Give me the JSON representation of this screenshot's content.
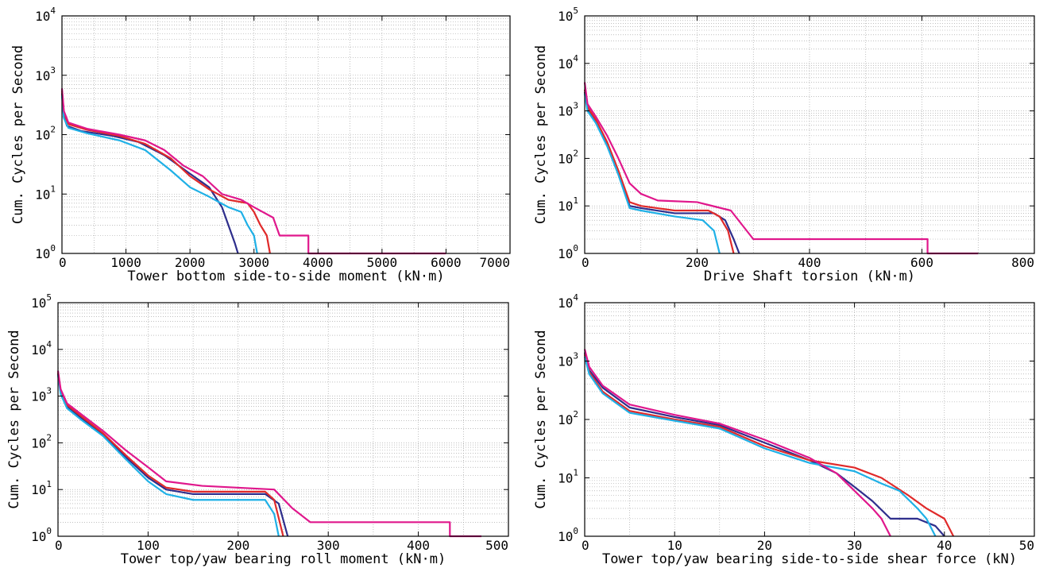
{
  "chart_data": [
    {
      "type": "line",
      "yscale": "log",
      "ylim": [
        1,
        10000
      ],
      "y_decades": [
        0,
        1,
        2,
        3,
        4
      ],
      "xlim": [
        0,
        7000
      ],
      "xticks": [
        0,
        1000,
        2000,
        3000,
        4000,
        5000,
        6000,
        7000
      ],
      "xlabel": "Tower bottom side-to-side moment (kN·m)",
      "ylabel": "Cum. Cycles per Second",
      "grid": true,
      "series": [
        {
          "color": "#2e2e8c",
          "points": [
            [
              0,
              500
            ],
            [
              30,
              200
            ],
            [
              80,
              140
            ],
            [
              300,
              115
            ],
            [
              800,
              95
            ],
            [
              1200,
              75
            ],
            [
              1600,
              45
            ],
            [
              2000,
              22
            ],
            [
              2300,
              13
            ],
            [
              2500,
              6
            ],
            [
              2600,
              3
            ],
            [
              2700,
              1.5
            ],
            [
              2750,
              1
            ]
          ]
        },
        {
          "color": "#e02a2a",
          "points": [
            [
              0,
              550
            ],
            [
              30,
              230
            ],
            [
              100,
              150
            ],
            [
              400,
              120
            ],
            [
              900,
              95
            ],
            [
              1300,
              70
            ],
            [
              1700,
              40
            ],
            [
              2000,
              20
            ],
            [
              2300,
              12
            ],
            [
              2600,
              8
            ],
            [
              2900,
              7
            ],
            [
              3000,
              5
            ],
            [
              3100,
              3
            ],
            [
              3200,
              2
            ],
            [
              3250,
              1
            ]
          ]
        },
        {
          "color": "#1fb0e6",
          "points": [
            [
              0,
              450
            ],
            [
              30,
              190
            ],
            [
              100,
              130
            ],
            [
              400,
              105
            ],
            [
              900,
              80
            ],
            [
              1300,
              55
            ],
            [
              1700,
              25
            ],
            [
              2000,
              13
            ],
            [
              2300,
              9
            ],
            [
              2600,
              6
            ],
            [
              2800,
              5
            ],
            [
              2900,
              3
            ],
            [
              3000,
              2
            ],
            [
              3050,
              1
            ]
          ]
        },
        {
          "color": "#e0178c",
          "points": [
            [
              0,
              600
            ],
            [
              30,
              250
            ],
            [
              100,
              160
            ],
            [
              400,
              125
            ],
            [
              900,
              100
            ],
            [
              1300,
              80
            ],
            [
              1600,
              55
            ],
            [
              1900,
              30
            ],
            [
              2200,
              20
            ],
            [
              2500,
              10
            ],
            [
              2800,
              8
            ],
            [
              3000,
              6
            ],
            [
              3300,
              4
            ],
            [
              3400,
              2
            ],
            [
              3850,
              2
            ],
            [
              3850,
              1
            ],
            [
              6000,
              1
            ]
          ]
        }
      ]
    },
    {
      "type": "line",
      "yscale": "log",
      "ylim": [
        1,
        100000
      ],
      "y_decades": [
        0,
        1,
        2,
        3,
        4,
        5
      ],
      "xlim": [
        0,
        800
      ],
      "xticks": [
        0,
        200,
        400,
        600,
        800
      ],
      "xlabel": "Drive Shaft torsion (kN·m)",
      "ylabel": "Cum. Cycles per Second",
      "grid": true,
      "series": [
        {
          "color": "#2e2e8c",
          "points": [
            [
              0,
              2500
            ],
            [
              5,
              1100
            ],
            [
              20,
              600
            ],
            [
              40,
              200
            ],
            [
              60,
              50
            ],
            [
              80,
              10
            ],
            [
              100,
              9
            ],
            [
              160,
              7
            ],
            [
              230,
              7
            ],
            [
              250,
              5
            ],
            [
              265,
              2
            ],
            [
              275,
              1
            ]
          ]
        },
        {
          "color": "#e02a2a",
          "points": [
            [
              0,
              2800
            ],
            [
              5,
              1200
            ],
            [
              20,
              650
            ],
            [
              40,
              220
            ],
            [
              60,
              55
            ],
            [
              80,
              12
            ],
            [
              100,
              10
            ],
            [
              160,
              8
            ],
            [
              220,
              8
            ],
            [
              240,
              6
            ],
            [
              255,
              3
            ],
            [
              265,
              1
            ]
          ]
        },
        {
          "color": "#1fb0e6",
          "points": [
            [
              0,
              2300
            ],
            [
              5,
              1000
            ],
            [
              20,
              550
            ],
            [
              40,
              180
            ],
            [
              60,
              45
            ],
            [
              80,
              9
            ],
            [
              100,
              8
            ],
            [
              160,
              6
            ],
            [
              210,
              5
            ],
            [
              230,
              3
            ],
            [
              240,
              1
            ]
          ]
        },
        {
          "color": "#e0178c",
          "points": [
            [
              0,
              4000
            ],
            [
              5,
              1400
            ],
            [
              20,
              750
            ],
            [
              40,
              300
            ],
            [
              60,
              100
            ],
            [
              80,
              30
            ],
            [
              100,
              18
            ],
            [
              130,
              13
            ],
            [
              200,
              12
            ],
            [
              260,
              8
            ],
            [
              280,
              4
            ],
            [
              300,
              2
            ],
            [
              610,
              2
            ],
            [
              610,
              1
            ],
            [
              700,
              1
            ]
          ]
        }
      ]
    },
    {
      "type": "line",
      "yscale": "log",
      "ylim": [
        1,
        100000
      ],
      "y_decades": [
        0,
        1,
        2,
        3,
        4,
        5
      ],
      "xlim": [
        0,
        500
      ],
      "xticks": [
        0,
        100,
        200,
        300,
        400,
        500
      ],
      "xlabel": "Tower top/yaw bearing roll moment (kN·m)",
      "ylabel": "Cum. Cycles per Second",
      "grid": true,
      "series": [
        {
          "color": "#2e2e8c",
          "points": [
            [
              0,
              3000
            ],
            [
              3,
              1200
            ],
            [
              10,
              600
            ],
            [
              25,
              350
            ],
            [
              50,
              150
            ],
            [
              75,
              50
            ],
            [
              100,
              18
            ],
            [
              120,
              10
            ],
            [
              150,
              8
            ],
            [
              230,
              8
            ],
            [
              245,
              5
            ],
            [
              255,
              1
            ]
          ]
        },
        {
          "color": "#e02a2a",
          "points": [
            [
              0,
              3200
            ],
            [
              3,
              1300
            ],
            [
              10,
              650
            ],
            [
              25,
              380
            ],
            [
              50,
              160
            ],
            [
              75,
              55
            ],
            [
              100,
              20
            ],
            [
              120,
              11
            ],
            [
              150,
              9
            ],
            [
              230,
              9
            ],
            [
              240,
              6
            ],
            [
              250,
              1
            ]
          ]
        },
        {
          "color": "#1fb0e6",
          "points": [
            [
              0,
              2800
            ],
            [
              3,
              1100
            ],
            [
              10,
              550
            ],
            [
              25,
              320
            ],
            [
              50,
              140
            ],
            [
              75,
              45
            ],
            [
              100,
              15
            ],
            [
              120,
              8
            ],
            [
              150,
              6
            ],
            [
              230,
              6
            ],
            [
              240,
              3
            ],
            [
              245,
              1
            ]
          ]
        },
        {
          "color": "#e0178c",
          "points": [
            [
              0,
              3500
            ],
            [
              3,
              1400
            ],
            [
              10,
              700
            ],
            [
              25,
              420
            ],
            [
              50,
              180
            ],
            [
              75,
              70
            ],
            [
              100,
              30
            ],
            [
              120,
              15
            ],
            [
              160,
              12
            ],
            [
              240,
              10
            ],
            [
              260,
              4
            ],
            [
              280,
              2
            ],
            [
              435,
              2
            ],
            [
              435,
              1
            ],
            [
              470,
              1
            ]
          ]
        }
      ]
    },
    {
      "type": "line",
      "yscale": "log",
      "ylim": [
        1,
        10000
      ],
      "y_decades": [
        0,
        1,
        2,
        3,
        4
      ],
      "xlim": [
        0,
        50
      ],
      "xticks": [
        0,
        10,
        20,
        30,
        40,
        50
      ],
      "xlabel": "Tower top/yaw bearing side-to-side shear force (kN)",
      "ylabel": "Cum. Cycles per Second",
      "grid": true,
      "series": [
        {
          "color": "#2e2e8c",
          "points": [
            [
              0,
              1400
            ],
            [
              0.5,
              700
            ],
            [
              2,
              350
            ],
            [
              5,
              160
            ],
            [
              10,
              110
            ],
            [
              15,
              80
            ],
            [
              20,
              40
            ],
            [
              25,
              20
            ],
            [
              28,
              12
            ],
            [
              30,
              7
            ],
            [
              32,
              4
            ],
            [
              34,
              2
            ],
            [
              37,
              2
            ],
            [
              39,
              1.5
            ],
            [
              40,
              1
            ]
          ]
        },
        {
          "color": "#e02a2a",
          "points": [
            [
              0,
              1300
            ],
            [
              0.5,
              650
            ],
            [
              2,
              300
            ],
            [
              5,
              140
            ],
            [
              10,
              100
            ],
            [
              15,
              75
            ],
            [
              20,
              35
            ],
            [
              25,
              20
            ],
            [
              30,
              15
            ],
            [
              33,
              10
            ],
            [
              36,
              5
            ],
            [
              38,
              3
            ],
            [
              40,
              2
            ],
            [
              41,
              1
            ]
          ]
        },
        {
          "color": "#1fb0e6",
          "points": [
            [
              0,
              1200
            ],
            [
              0.5,
              600
            ],
            [
              2,
              280
            ],
            [
              5,
              130
            ],
            [
              10,
              95
            ],
            [
              15,
              70
            ],
            [
              20,
              32
            ],
            [
              25,
              18
            ],
            [
              30,
              13
            ],
            [
              33,
              8
            ],
            [
              35,
              6
            ],
            [
              37,
              3
            ],
            [
              38,
              2
            ],
            [
              39,
              1
            ]
          ]
        },
        {
          "color": "#e0178c",
          "points": [
            [
              0,
              1600
            ],
            [
              0.5,
              800
            ],
            [
              2,
              380
            ],
            [
              5,
              180
            ],
            [
              10,
              120
            ],
            [
              15,
              85
            ],
            [
              20,
              45
            ],
            [
              25,
              22
            ],
            [
              28,
              12
            ],
            [
              30,
              6
            ],
            [
              32,
              3
            ],
            [
              33,
              2
            ],
            [
              34,
              1
            ]
          ]
        }
      ]
    }
  ]
}
